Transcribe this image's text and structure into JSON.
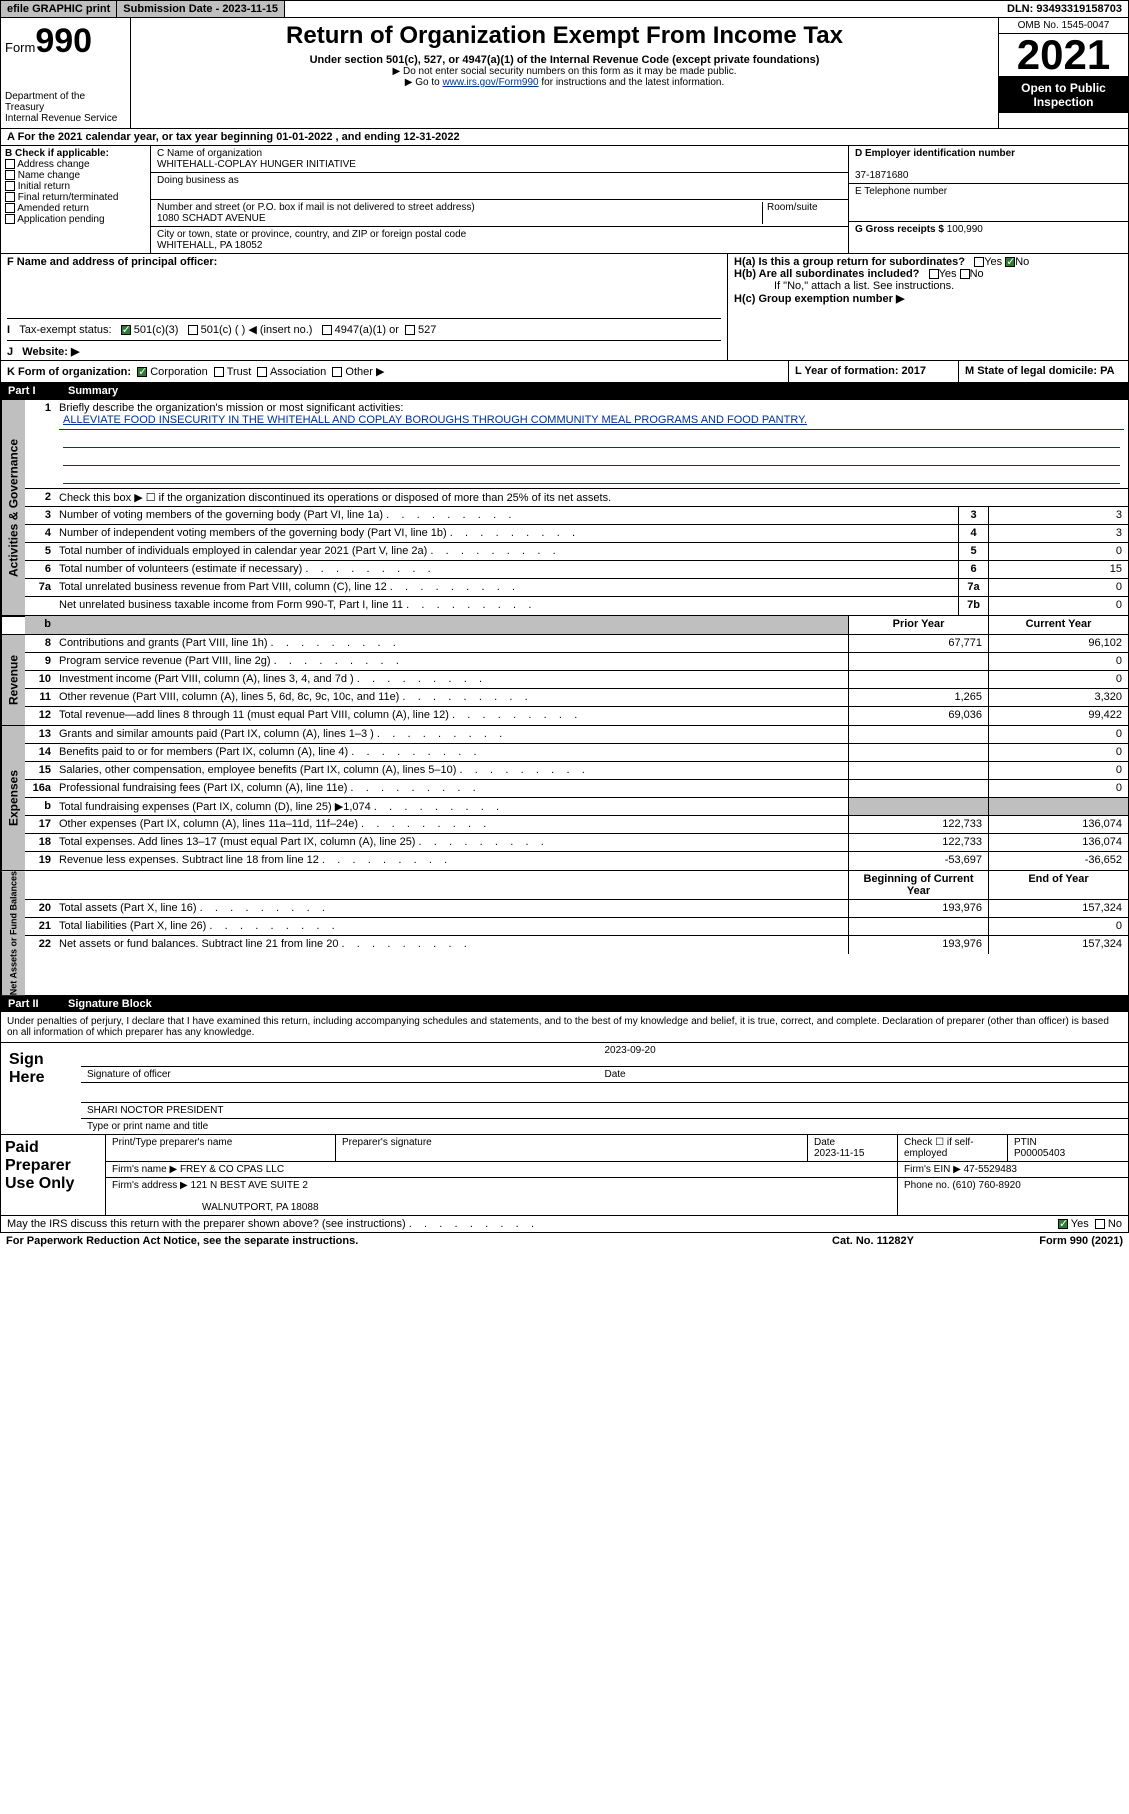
{
  "topbar": {
    "efile": "efile GRAPHIC print",
    "submission_label": "Submission Date - 2023-11-15",
    "dln": "DLN: 93493319158703"
  },
  "header": {
    "form_prefix": "Form",
    "form_num": "990",
    "title": "Return of Organization Exempt From Income Tax",
    "subtitle": "Under section 501(c), 527, or 4947(a)(1) of the Internal Revenue Code (except private foundations)",
    "note1": "▶ Do not enter social security numbers on this form as it may be made public.",
    "note2_pre": "▶ Go to ",
    "note2_link": "www.irs.gov/Form990",
    "note2_post": " for instructions and the latest information.",
    "dept": "Department of the Treasury",
    "irs": "Internal Revenue Service",
    "omb": "OMB No. 1545-0047",
    "year": "2021",
    "open": "Open to Public Inspection"
  },
  "sectionA": "A For the 2021 calendar year, or tax year beginning 01-01-2022   , and ending 12-31-2022",
  "sectionB": {
    "label": "B Check if applicable:",
    "items": [
      "Address change",
      "Name change",
      "Initial return",
      "Final return/terminated",
      "Amended return",
      "Application pending"
    ]
  },
  "sectionC": {
    "name_label": "C Name of organization",
    "name": "WHITEHALL-COPLAY HUNGER INITIATIVE",
    "dba_label": "Doing business as",
    "addr_label": "Number and street (or P.O. box if mail is not delivered to street address)",
    "room_label": "Room/suite",
    "addr": "1080 SCHADT AVENUE",
    "city_label": "City or town, state or province, country, and ZIP or foreign postal code",
    "city": "WHITEHALL, PA  18052"
  },
  "sectionD": {
    "ein_label": "D Employer identification number",
    "ein": "37-1871680",
    "phone_label": "E Telephone number",
    "gross_label": "G Gross receipts $",
    "gross": "100,990"
  },
  "sectionF": {
    "label": "F  Name and address of principal officer:"
  },
  "sectionH": {
    "a": "H(a)  Is this a group return for subordinates?",
    "b": "H(b)  Are all subordinates included?",
    "b_note": "If \"No,\" attach a list. See instructions.",
    "c": "H(c)  Group exemption number ▶"
  },
  "sectionI": {
    "label": "Tax-exempt status:",
    "opts": [
      "501(c)(3)",
      "501(c) (  ) ◀ (insert no.)",
      "4947(a)(1) or",
      "527"
    ]
  },
  "sectionJ": "Website: ▶",
  "sectionK": {
    "label": "K Form of organization:",
    "opts": [
      "Corporation",
      "Trust",
      "Association",
      "Other ▶"
    ]
  },
  "sectionL": "L Year of formation: 2017",
  "sectionM": "M State of legal domicile: PA",
  "part1": {
    "header_num": "Part I",
    "header_title": "Summary",
    "line1_label": "Briefly describe the organization's mission or most significant activities:",
    "line1_text": "ALLEVIATE FOOD INSECURITY IN THE WHITEHALL AND COPLAY BOROUGHS THROUGH COMMUNITY MEAL PROGRAMS AND FOOD PANTRY.",
    "line2": "Check this box ▶ ☐  if the organization discontinued its operations or disposed of more than 25% of its net assets.",
    "rows_gov": [
      {
        "n": "3",
        "d": "Number of voting members of the governing body (Part VI, line 1a)",
        "box": "3",
        "v": "3"
      },
      {
        "n": "4",
        "d": "Number of independent voting members of the governing body (Part VI, line 1b)",
        "box": "4",
        "v": "3"
      },
      {
        "n": "5",
        "d": "Total number of individuals employed in calendar year 2021 (Part V, line 2a)",
        "box": "5",
        "v": "0"
      },
      {
        "n": "6",
        "d": "Total number of volunteers (estimate if necessary)",
        "box": "6",
        "v": "15"
      },
      {
        "n": "7a",
        "d": "Total unrelated business revenue from Part VIII, column (C), line 12",
        "box": "7a",
        "v": "0"
      },
      {
        "n": "",
        "d": "Net unrelated business taxable income from Form 990-T, Part I, line 11",
        "box": "7b",
        "v": "0"
      }
    ],
    "col_headers": {
      "prior": "Prior Year",
      "current": "Current Year"
    },
    "rows_rev": [
      {
        "n": "8",
        "d": "Contributions and grants (Part VIII, line 1h)",
        "p": "67,771",
        "c": "96,102"
      },
      {
        "n": "9",
        "d": "Program service revenue (Part VIII, line 2g)",
        "p": "",
        "c": "0"
      },
      {
        "n": "10",
        "d": "Investment income (Part VIII, column (A), lines 3, 4, and 7d )",
        "p": "",
        "c": "0"
      },
      {
        "n": "11",
        "d": "Other revenue (Part VIII, column (A), lines 5, 6d, 8c, 9c, 10c, and 11e)",
        "p": "1,265",
        "c": "3,320"
      },
      {
        "n": "12",
        "d": "Total revenue—add lines 8 through 11 (must equal Part VIII, column (A), line 12)",
        "p": "69,036",
        "c": "99,422"
      }
    ],
    "rows_exp": [
      {
        "n": "13",
        "d": "Grants and similar amounts paid (Part IX, column (A), lines 1–3 )",
        "p": "",
        "c": "0"
      },
      {
        "n": "14",
        "d": "Benefits paid to or for members (Part IX, column (A), line 4)",
        "p": "",
        "c": "0"
      },
      {
        "n": "15",
        "d": "Salaries, other compensation, employee benefits (Part IX, column (A), lines 5–10)",
        "p": "",
        "c": "0"
      },
      {
        "n": "16a",
        "d": "Professional fundraising fees (Part IX, column (A), line 11e)",
        "p": "",
        "c": "0"
      },
      {
        "n": "b",
        "d": "Total fundraising expenses (Part IX, column (D), line 25) ▶1,074",
        "p": "shaded",
        "c": "shaded"
      },
      {
        "n": "17",
        "d": "Other expenses (Part IX, column (A), lines 11a–11d, 11f–24e)",
        "p": "122,733",
        "c": "136,074"
      },
      {
        "n": "18",
        "d": "Total expenses. Add lines 13–17 (must equal Part IX, column (A), line 25)",
        "p": "122,733",
        "c": "136,074"
      },
      {
        "n": "19",
        "d": "Revenue less expenses. Subtract line 18 from line 12",
        "p": "-53,697",
        "c": "-36,652"
      }
    ],
    "col_headers2": {
      "beg": "Beginning of Current Year",
      "end": "End of Year"
    },
    "rows_net": [
      {
        "n": "20",
        "d": "Total assets (Part X, line 16)",
        "p": "193,976",
        "c": "157,324"
      },
      {
        "n": "21",
        "d": "Total liabilities (Part X, line 26)",
        "p": "",
        "c": "0"
      },
      {
        "n": "22",
        "d": "Net assets or fund balances. Subtract line 21 from line 20",
        "p": "193,976",
        "c": "157,324"
      }
    ]
  },
  "sidelabels": {
    "gov": "Activities & Governance",
    "rev": "Revenue",
    "exp": "Expenses",
    "net": "Net Assets or Fund Balances"
  },
  "part2": {
    "header_num": "Part II",
    "header_title": "Signature Block",
    "declare": "Under penalties of perjury, I declare that I have examined this return, including accompanying schedules and statements, and to the best of my knowledge and belief, it is true, correct, and complete. Declaration of preparer (other than officer) is based on all information of which preparer has any knowledge.",
    "sign_here": "Sign Here",
    "sig_officer": "Signature of officer",
    "sig_date_label": "Date",
    "sig_date": "2023-09-20",
    "officer_name": "SHARI NOCTOR PRESIDENT",
    "type_name": "Type or print name and title",
    "paid_label": "Paid Preparer Use Only",
    "prep_name_label": "Print/Type preparer's name",
    "prep_sig_label": "Preparer's signature",
    "prep_date_label": "Date",
    "prep_date": "2023-11-15",
    "check_if": "Check ☐ if self-employed",
    "ptin_label": "PTIN",
    "ptin": "P00005403",
    "firm_name_label": "Firm's name    ▶",
    "firm_name": "FREY & CO CPAS LLC",
    "firm_ein_label": "Firm's EIN ▶",
    "firm_ein": "47-5529483",
    "firm_addr_label": "Firm's address ▶",
    "firm_addr1": "121 N BEST AVE SUITE 2",
    "firm_addr2": "WALNUTPORT, PA  18088",
    "phone_label": "Phone no.",
    "phone": "(610) 760-8920"
  },
  "footer": {
    "discuss": "May the IRS discuss this return with the preparer shown above? (see instructions)",
    "paperwork": "For Paperwork Reduction Act Notice, see the separate instructions.",
    "catno": "Cat. No. 11282Y",
    "formno": "Form 990 (2021)"
  }
}
